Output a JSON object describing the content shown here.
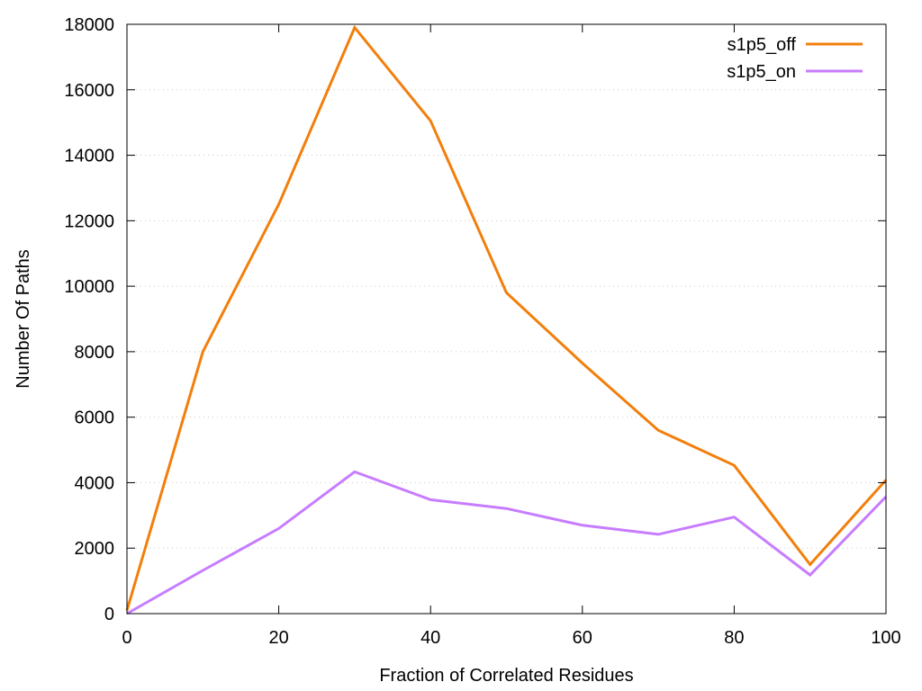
{
  "chart_data": {
    "type": "line",
    "xlabel": "Fraction of Correlated Residues",
    "ylabel": "Number Of Paths",
    "xlim": [
      0,
      100
    ],
    "ylim": [
      0,
      18000
    ],
    "x_ticks": [
      0,
      20,
      40,
      60,
      80,
      100
    ],
    "y_ticks": [
      0,
      2000,
      4000,
      6000,
      8000,
      10000,
      12000,
      14000,
      16000,
      18000
    ],
    "grid": "horizontal dotted",
    "legend_position": "top-right",
    "x": [
      0,
      10,
      20,
      30,
      40,
      50,
      60,
      70,
      80,
      90,
      100
    ],
    "series": [
      {
        "name": "s1p5_off",
        "color": "#f27f0c",
        "values": [
          100,
          8000,
          12500,
          17900,
          15050,
          9800,
          7650,
          5600,
          4530,
          1500,
          4080
        ]
      },
      {
        "name": "s1p5_on",
        "color": "#c77cff",
        "values": [
          0,
          1320,
          2600,
          4330,
          3480,
          3210,
          2700,
          2420,
          2950,
          1180,
          3570
        ]
      }
    ]
  }
}
